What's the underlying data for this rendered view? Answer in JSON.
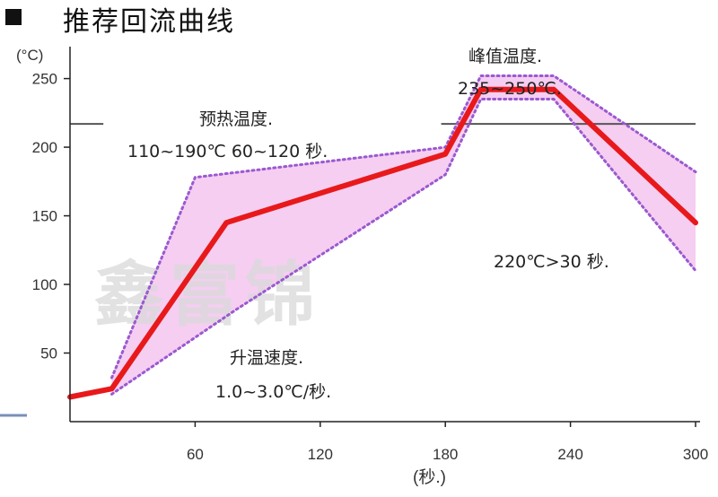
{
  "title": "推荐回流曲线",
  "watermark": "鑫富锦",
  "chart_data": {
    "type": "line",
    "title": "推荐回流曲线",
    "xlabel": "(秒.)",
    "ylabel": "(°C)",
    "xlim": [
      0,
      300
    ],
    "ylim": [
      0,
      270
    ],
    "xticks": [
      60,
      120,
      180,
      240,
      300
    ],
    "xtick_labels": [
      "60",
      "120",
      "180",
      "240",
      "300"
    ],
    "yticks": [
      50,
      100,
      150,
      200,
      250
    ],
    "ytick_labels": [
      "50",
      "100",
      "150",
      "200",
      "250"
    ],
    "grid": false,
    "reference_line": {
      "y": 217
    },
    "series": [
      {
        "role": "profile",
        "color": "#e8191b",
        "x": [
          0,
          20,
          75,
          180,
          197,
          232,
          300
        ],
        "y": [
          18,
          24,
          145,
          195,
          242,
          242,
          145
        ]
      },
      {
        "role": "upper-bound",
        "color": "#9b59d0",
        "x": [
          20,
          60,
          180,
          197,
          232,
          300
        ],
        "y": [
          32,
          178,
          200,
          252,
          252,
          182
        ]
      },
      {
        "role": "lower-bound",
        "color": "#9b59d0",
        "x": [
          20,
          80,
          180,
          197,
          232,
          300
        ],
        "y": [
          20,
          82,
          180,
          235,
          235,
          110
        ]
      }
    ],
    "band_color": "#f3c6ee",
    "annotations": [
      {
        "id": "preheat-1",
        "text": "预热温度."
      },
      {
        "id": "preheat-2",
        "text": "110~190℃  60~120 秒."
      },
      {
        "id": "peak-1",
        "text": "峰值温度."
      },
      {
        "id": "peak-2",
        "text": "235~250℃."
      },
      {
        "id": "above-220",
        "text": "220℃>30 秒."
      },
      {
        "id": "ramp-1",
        "text": "升温速度."
      },
      {
        "id": "ramp-2",
        "text": "1.0~3.0℃/秒."
      }
    ]
  }
}
